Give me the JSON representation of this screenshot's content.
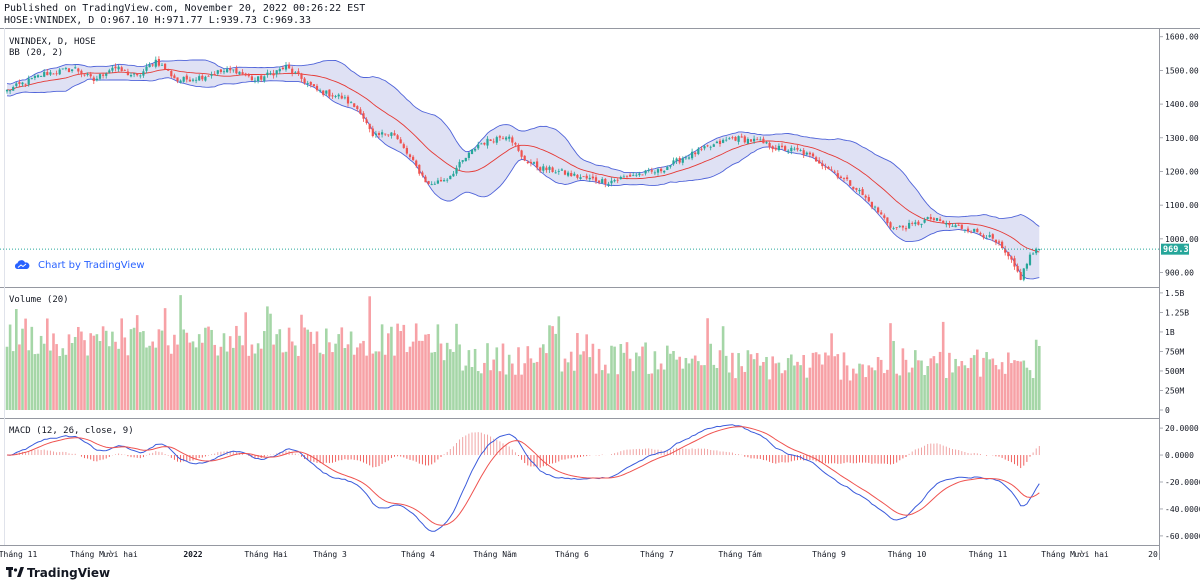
{
  "header": {
    "line1": "Published on TradingView.com, November 20, 2022 00:26:22 EST",
    "line2": "HOSE:VNINDEX, D O:967.10 H:971.77 L:939.73 C:969.33"
  },
  "branding": {
    "badge": "Chart by TradingView",
    "footer": "TradingView",
    "accent": "#2962ff"
  },
  "chart_data": [
    {
      "type": "candlestick",
      "title": "VNINDEX, D, HOSE",
      "indicator_label": "BB (20, 2)",
      "yticks": [
        900,
        1000,
        1100,
        1200,
        1300,
        1400,
        1500,
        1600
      ],
      "ytick_labels": [
        "900.00",
        "1000.00",
        "1100.00",
        "1200.00",
        "1300.00",
        "1400.00",
        "1500.00",
        "1600.00"
      ],
      "ylim": [
        860,
        1620
      ],
      "last_price": 969.33,
      "last_price_label": "969.33",
      "path": [
        [
          0,
          1440
        ],
        [
          12,
          1490
        ],
        [
          22,
          1505
        ],
        [
          28,
          1470
        ],
        [
          34,
          1510
        ],
        [
          42,
          1480
        ],
        [
          48,
          1530
        ],
        [
          55,
          1470
        ],
        [
          62,
          1480
        ],
        [
          68,
          1495
        ],
        [
          74,
          1500
        ],
        [
          80,
          1470
        ],
        [
          90,
          1510
        ],
        [
          100,
          1440
        ],
        [
          108,
          1420
        ],
        [
          114,
          1380
        ],
        [
          118,
          1300
        ],
        [
          124,
          1320
        ],
        [
          130,
          1240
        ],
        [
          136,
          1160
        ],
        [
          142,
          1180
        ],
        [
          148,
          1240
        ],
        [
          152,
          1280
        ],
        [
          158,
          1300
        ],
        [
          162,
          1310
        ],
        [
          166,
          1240
        ],
        [
          172,
          1210
        ],
        [
          178,
          1200
        ],
        [
          186,
          1180
        ],
        [
          194,
          1170
        ],
        [
          202,
          1190
        ],
        [
          210,
          1200
        ],
        [
          218,
          1240
        ],
        [
          226,
          1270
        ],
        [
          234,
          1300
        ],
        [
          242,
          1290
        ],
        [
          248,
          1270
        ],
        [
          256,
          1260
        ],
        [
          262,
          1230
        ],
        [
          268,
          1190
        ],
        [
          274,
          1150
        ],
        [
          280,
          1090
        ],
        [
          286,
          1030
        ],
        [
          292,
          1040
        ],
        [
          298,
          1060
        ],
        [
          304,
          1040
        ],
        [
          310,
          1030
        ],
        [
          316,
          1010
        ],
        [
          320,
          980
        ],
        [
          324,
          930
        ],
        [
          327,
          885
        ],
        [
          330,
          950
        ],
        [
          333,
          969
        ]
      ],
      "colors": {
        "up": "#26a69a",
        "down": "#ef5350",
        "band_fill": "#d1d4f0",
        "band_line": "#4f63d9",
        "basis": "#e53935",
        "price_line": "#26a69a"
      }
    },
    {
      "type": "bar",
      "title": "Volume (20)",
      "yticks": [
        0,
        250,
        500,
        750,
        1000,
        1250,
        1500
      ],
      "ytick_labels": [
        "0",
        "250M",
        "500M",
        "750M",
        "1B",
        "1.25B",
        "1.5B"
      ],
      "ylim": [
        0,
        1550
      ],
      "colors": {
        "up": "#a5d6a7",
        "down": "#f7a1a6"
      }
    },
    {
      "type": "line",
      "title": "MACD (12, 26, close, 9)",
      "yticks": [
        -60,
        -40,
        -20,
        0,
        20
      ],
      "ytick_labels": [
        "-60.0000",
        "-40.0000",
        "-20.0000",
        "0.0000",
        "20.0000"
      ],
      "ylim": [
        -66,
        26
      ],
      "colors": {
        "macd": "#3b5bdb",
        "signal": "#ef5350",
        "hist": "#ef5350"
      }
    },
    {
      "type": "time_axis",
      "x_labels": [
        "Tháng 11",
        "Tháng Mười hai",
        "2022",
        "Tháng Hai",
        "Tháng 3",
        "Tháng 4",
        "Tháng Năm",
        "Tháng 6",
        "Tháng 7",
        "Tháng Tám",
        "Tháng 9",
        "Tháng 10",
        "Tháng 11",
        "Tháng Mười hai",
        "20"
      ],
      "bold_labels": [
        "2022"
      ]
    }
  ]
}
